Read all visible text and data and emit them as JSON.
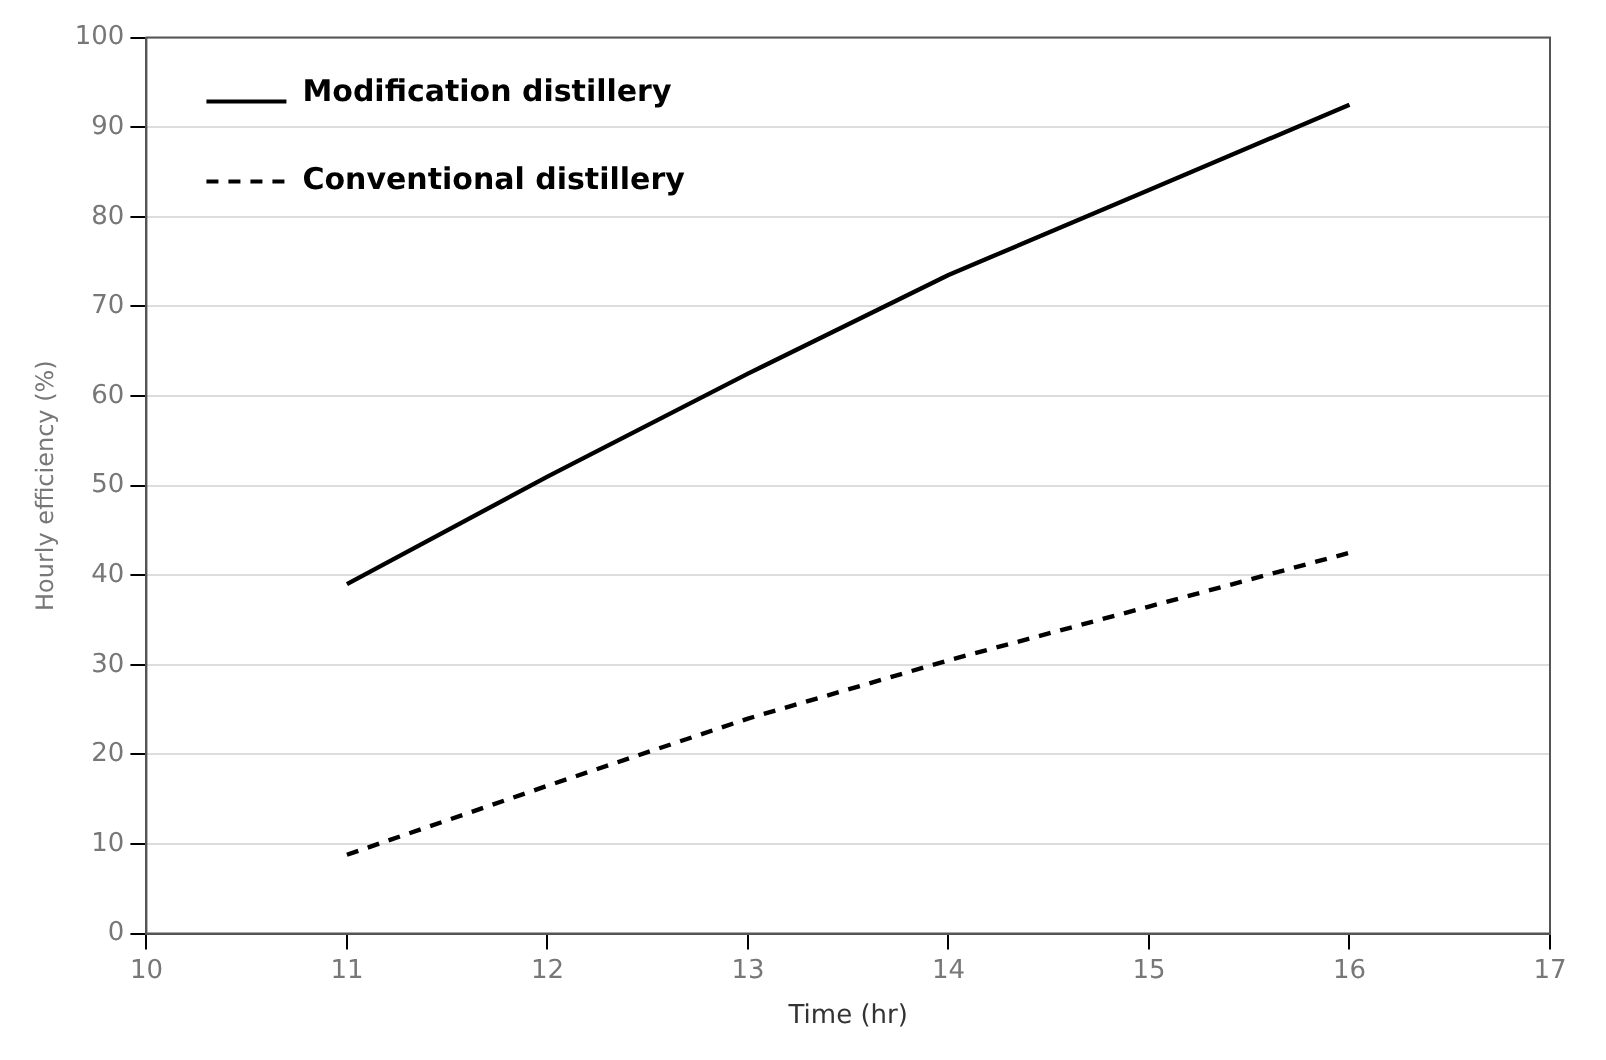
{
  "chart_data": {
    "type": "line",
    "xlabel": "Time (hr)",
    "ylabel": "Hourly efficiency (%)",
    "x": [
      11,
      12,
      13,
      14,
      15,
      16
    ],
    "series": [
      {
        "name": "Modification distillery",
        "color": "#000000",
        "line_style": "solid",
        "values": [
          39,
          51,
          62.5,
          73.5,
          83,
          92.5
        ]
      },
      {
        "name": "Conventional distillery",
        "color": "#000000",
        "line_style": "dashed",
        "values": [
          8.8,
          16.5,
          24,
          30.5,
          36.5,
          42.5
        ]
      }
    ],
    "xlim": [
      10,
      17
    ],
    "xticks": [
      10,
      11,
      12,
      13,
      14,
      15,
      16,
      17
    ],
    "ylim": [
      0,
      100
    ],
    "yticks": [
      0,
      10,
      20,
      30,
      40,
      50,
      60,
      70,
      80,
      90,
      100
    ],
    "grid": "y",
    "legend": "top left",
    "marker": "none"
  }
}
